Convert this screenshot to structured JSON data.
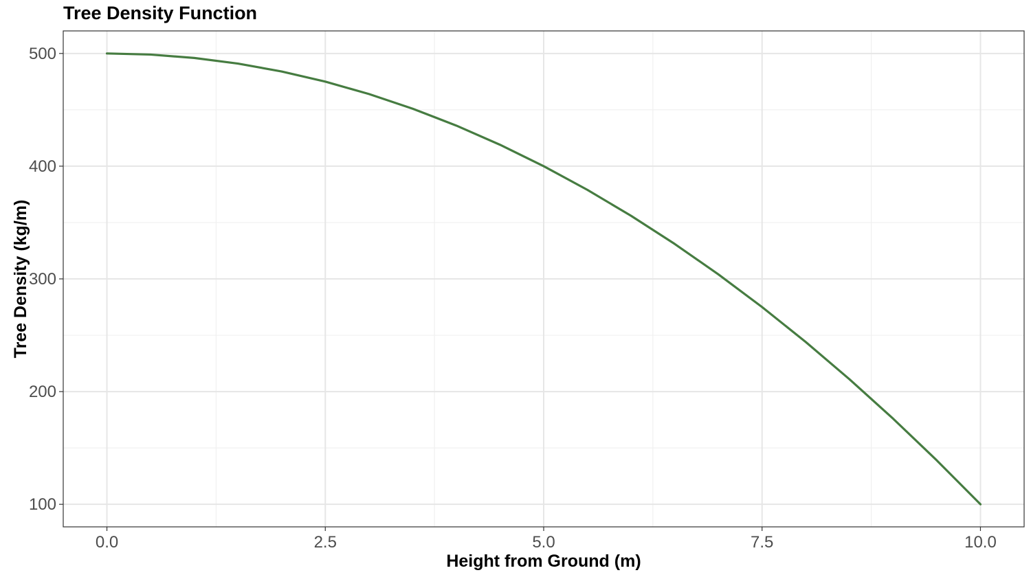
{
  "chart_data": {
    "type": "line",
    "title": "Tree Density Function",
    "xlabel": "Height from Ground (m)",
    "ylabel": "Tree Density (kg/m)",
    "xlim": [
      -0.5,
      10.5
    ],
    "ylim": [
      80,
      520
    ],
    "x_ticks": [
      0,
      2.5,
      5,
      7.5,
      10
    ],
    "x_tick_labels": [
      "0.0",
      "2.5",
      "5.0",
      "7.5",
      "10.0"
    ],
    "y_ticks": [
      100,
      200,
      300,
      400,
      500
    ],
    "y_tick_labels": [
      "100",
      "200",
      "300",
      "400",
      "500"
    ],
    "x_minor_ticks": [
      1.25,
      3.75,
      6.25,
      8.75
    ],
    "y_minor_ticks": [
      150,
      250,
      350,
      450
    ],
    "grid": true,
    "legend": "none",
    "series": [
      {
        "color": "#467c41",
        "x": [
          0,
          0.5,
          1,
          1.5,
          2,
          2.5,
          3,
          3.5,
          4,
          4.5,
          5,
          5.5,
          6,
          6.5,
          7,
          7.5,
          8,
          8.5,
          9,
          9.5,
          10
        ],
        "y": [
          500,
          499,
          496,
          491,
          484,
          475,
          464,
          451,
          436,
          419,
          400,
          379,
          356,
          331,
          304,
          275,
          244,
          211,
          176,
          139,
          100
        ]
      }
    ]
  }
}
